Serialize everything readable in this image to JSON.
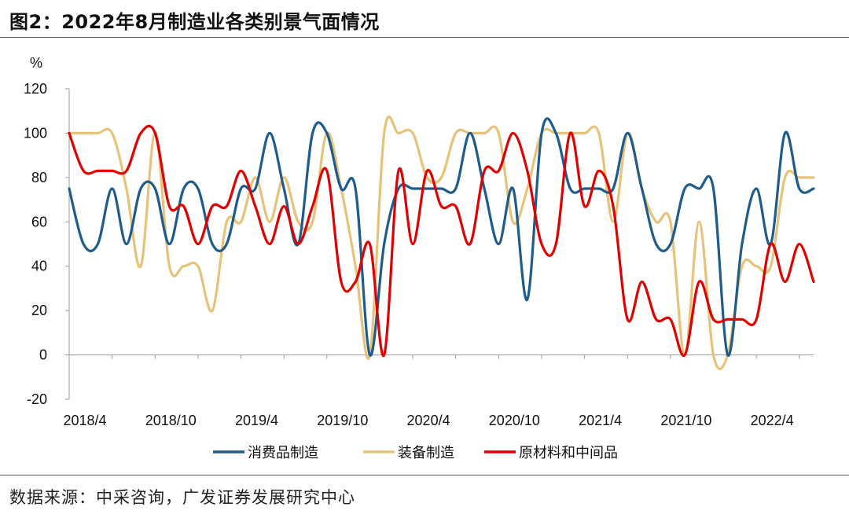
{
  "header": {
    "title": "图2：2022年8月制造业各类别景气面情况"
  },
  "footer": {
    "source": "数据来源：中采咨询，广发证券发展研究中心"
  },
  "chart_data": {
    "type": "line",
    "ylabel": "%",
    "ylim": [
      -20,
      120
    ],
    "yticks": [
      -20,
      0,
      20,
      40,
      60,
      80,
      100,
      120
    ],
    "x": [
      "2018/4",
      "2018/5",
      "2018/6",
      "2018/7",
      "2018/8",
      "2018/9",
      "2018/10",
      "2018/11",
      "2018/12",
      "2019/1",
      "2019/2",
      "2019/3",
      "2019/4",
      "2019/5",
      "2019/6",
      "2019/7",
      "2019/8",
      "2019/9",
      "2019/10",
      "2019/11",
      "2019/12",
      "2020/1",
      "2020/2",
      "2020/3",
      "2020/4",
      "2020/5",
      "2020/6",
      "2020/7",
      "2020/8",
      "2020/9",
      "2020/10",
      "2020/11",
      "2020/12",
      "2021/1",
      "2021/2",
      "2021/3",
      "2021/4",
      "2021/5",
      "2021/6",
      "2021/7",
      "2021/8",
      "2021/9",
      "2021/10",
      "2021/11",
      "2021/12",
      "2022/1",
      "2022/2",
      "2022/3",
      "2022/4",
      "2022/5",
      "2022/6",
      "2022/7",
      "2022/8"
    ],
    "xticks": [
      "2018/4",
      "2018/10",
      "2019/4",
      "2019/10",
      "2020/4",
      "2020/10",
      "2021/4",
      "2021/10",
      "2022/4"
    ],
    "legend_position": "bottom",
    "series": [
      {
        "name": "消费品制造",
        "color": "#1f5c8b",
        "values": [
          75,
          50,
          50,
          75,
          50,
          75,
          75,
          50,
          75,
          75,
          50,
          50,
          75,
          75,
          100,
          75,
          50,
          100,
          100,
          75,
          75,
          0,
          50,
          75,
          75,
          75,
          75,
          75,
          100,
          75,
          50,
          75,
          25,
          100,
          100,
          75,
          75,
          75,
          75,
          100,
          75,
          50,
          50,
          75,
          75,
          75,
          0,
          50,
          75,
          50,
          100,
          75,
          75
        ]
      },
      {
        "name": "装备制造",
        "color": "#e6c37a",
        "values": [
          100,
          100,
          100,
          100,
          75,
          40,
          100,
          40,
          40,
          40,
          20,
          60,
          60,
          80,
          60,
          80,
          60,
          60,
          100,
          75,
          40,
          0,
          100,
          100,
          100,
          80,
          80,
          100,
          100,
          100,
          100,
          60,
          75,
          100,
          100,
          100,
          100,
          100,
          60,
          100,
          75,
          60,
          60,
          0,
          60,
          0,
          0,
          40,
          40,
          40,
          80,
          80,
          80
        ]
      },
      {
        "name": "原材料和中间品",
        "color": "#e00000",
        "values": [
          100,
          83,
          83,
          83,
          83,
          100,
          100,
          67,
          67,
          50,
          67,
          67,
          83,
          67,
          50,
          67,
          50,
          67,
          83,
          33,
          33,
          50,
          0,
          83,
          50,
          83,
          67,
          67,
          50,
          83,
          83,
          100,
          83,
          50,
          50,
          100,
          67,
          83,
          67,
          16,
          33,
          16,
          16,
          0,
          33,
          16,
          16,
          16,
          16,
          50,
          33,
          50,
          33
        ]
      }
    ]
  }
}
